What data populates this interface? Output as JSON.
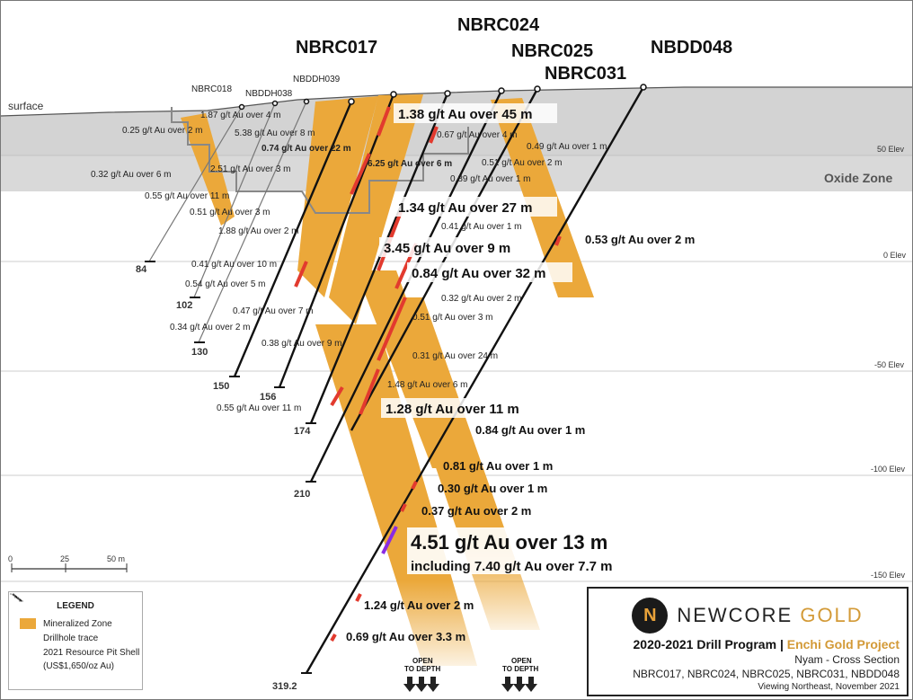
{
  "surface_label": "surface",
  "oxide_label": "Oxide Zone",
  "elevations": [
    "50 Elev",
    "0 Elev",
    "-50 Elev",
    "-100 Elev",
    "-150 Elev"
  ],
  "holes_main": [
    "NBRC017",
    "NBRC024",
    "NBRC025",
    "NBRC031",
    "NBDD048"
  ],
  "holes_minor": [
    "NBRC018",
    "NBDDH038",
    "NBDDH039"
  ],
  "depths": [
    "84",
    "102",
    "130",
    "150",
    "156",
    "174",
    "210",
    "319.2"
  ],
  "small_intercepts": [
    "1.87 g/t Au over 4 m",
    "0.25 g/t Au over 2 m",
    "5.38 g/t Au over 8 m",
    "0.74 g/t Au over 22 m",
    "6.25 g/t Au over 6 m",
    "0.67 g/t Au over 4 m",
    "0.49 g/t Au over 1 m",
    "0.51 g/t Au over 2 m",
    "0.89 g/t Au over 1 m",
    "0.32 g/t Au over 6 m",
    "2.51 g/t Au over 3 m",
    "0.55 g/t Au over 11 m",
    "0.51 g/t Au over 3 m",
    "1.88 g/t Au over 2 m",
    "0.41 g/t Au over 1 m",
    "0.41 g/t Au over 10 m",
    "0.54 g/t Au over 5 m",
    "0.32 g/t Au over 2 m",
    "0.47 g/t Au over 7 m",
    "0.51 g/t Au over 3 m",
    "0.34 g/t Au over 2 m",
    "0.38 g/t Au over 9 m",
    "0.31 g/t Au over 24 m",
    "1.48 g/t Au over 6 m",
    "0.55 g/t Au over 11 m"
  ],
  "mid_intercepts": [
    "0.53 g/t Au over 2 m",
    "0.84 g/t Au over 1 m",
    "0.81 g/t Au over 1 m",
    "0.30 g/t Au over 1 m",
    "0.37 g/t Au over 2 m",
    "1.24 g/t Au over 2 m",
    "0.69 g/t Au over 3.3 m"
  ],
  "big_intercepts": [
    "1.38 g/t Au over 45 m",
    "1.34 g/t Au over 27 m",
    "3.45 g/t Au over 9 m",
    "0.84 g/t Au over 32 m",
    "1.28 g/t Au over 11 m"
  ],
  "highlight_intercept": "4.51 g/t Au over 13 m",
  "highlight_including": "including 7.40 g/t Au over 7.7 m",
  "open_to_depth": [
    "OPEN",
    "TO DEPTH"
  ],
  "scale": {
    "labels": [
      "0",
      "25",
      "50 m"
    ]
  },
  "legend": {
    "title": "LEGEND",
    "items": [
      "Mineralized Zone",
      "Drillhole trace",
      "2021 Resource Pit Shell",
      "(US$1,650/oz Au)"
    ]
  },
  "title_block": {
    "brand_a": "NEWCORE",
    "brand_b": "GOLD",
    "program": "2020-2021 Drill Program",
    "separator": "|",
    "project": "Enchi Gold Project",
    "section": "Nyam - Cross Section",
    "holes": "NBRC017, NBRC024, NBRC025, NBRC031, NBDD048",
    "view": "Viewing Northeast, November 2021"
  },
  "colors": {
    "mineral": "#eba83a",
    "oxide": "#d6d6d6",
    "drill": "#111111",
    "assay": "#e23a2e"
  }
}
